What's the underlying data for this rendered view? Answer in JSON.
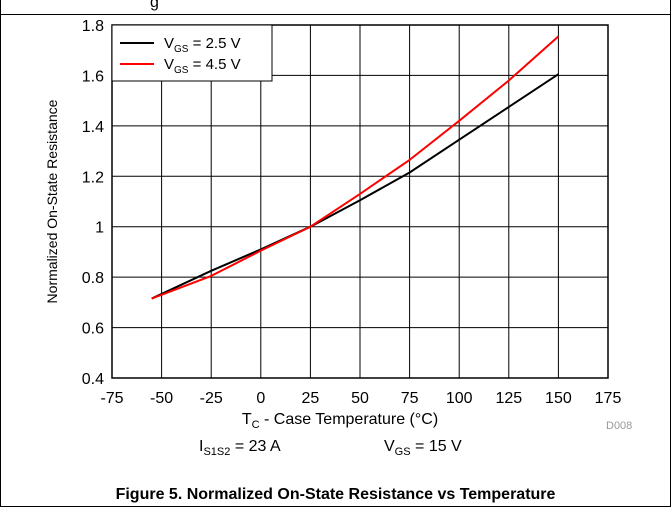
{
  "top_caption": "g",
  "chart_data": {
    "type": "line",
    "xlabel": {
      "main": "T",
      "sub": "C",
      "rest": " - Case Temperature (°C)"
    },
    "ylabel": "Normalized On-State Resistance",
    "xlim": [
      -75,
      175
    ],
    "ylim": [
      0.4,
      1.8
    ],
    "xticks": [
      "-75",
      "-50",
      "-25",
      "0",
      "25",
      "50",
      "75",
      "100",
      "125",
      "150",
      "175"
    ],
    "yticks": [
      "0.4",
      "0.6",
      "0.8",
      "1",
      "1.2",
      "1.4",
      "1.6",
      "1.8"
    ],
    "grid": true,
    "legend_position": "top-left",
    "series": [
      {
        "name": "V",
        "sub": "GS",
        "suffix": " = 2.5 V",
        "color": "#000000",
        "x": [
          -55,
          -25,
          0,
          25,
          50,
          75,
          100,
          125,
          150
        ],
        "y": [
          0.715,
          0.825,
          0.91,
          1.0,
          1.105,
          1.215,
          1.345,
          1.475,
          1.605
        ]
      },
      {
        "name": "V",
        "sub": "GS",
        "suffix": " = 4.5 V",
        "color": "#ff0000",
        "x": [
          -55,
          -25,
          0,
          25,
          50,
          75,
          100,
          125,
          150
        ],
        "y": [
          0.715,
          0.805,
          0.905,
          1.0,
          1.13,
          1.265,
          1.42,
          1.58,
          1.755
        ]
      }
    ]
  },
  "conditions": [
    {
      "main": "I",
      "sub": "S1S2",
      "rest": " = 23 A"
    },
    {
      "main": "V",
      "sub": "GS",
      "rest": " = 15 V"
    }
  ],
  "diagram_id": "D008",
  "figure_caption": "Figure 5. Normalized On-State Resistance vs Temperature"
}
